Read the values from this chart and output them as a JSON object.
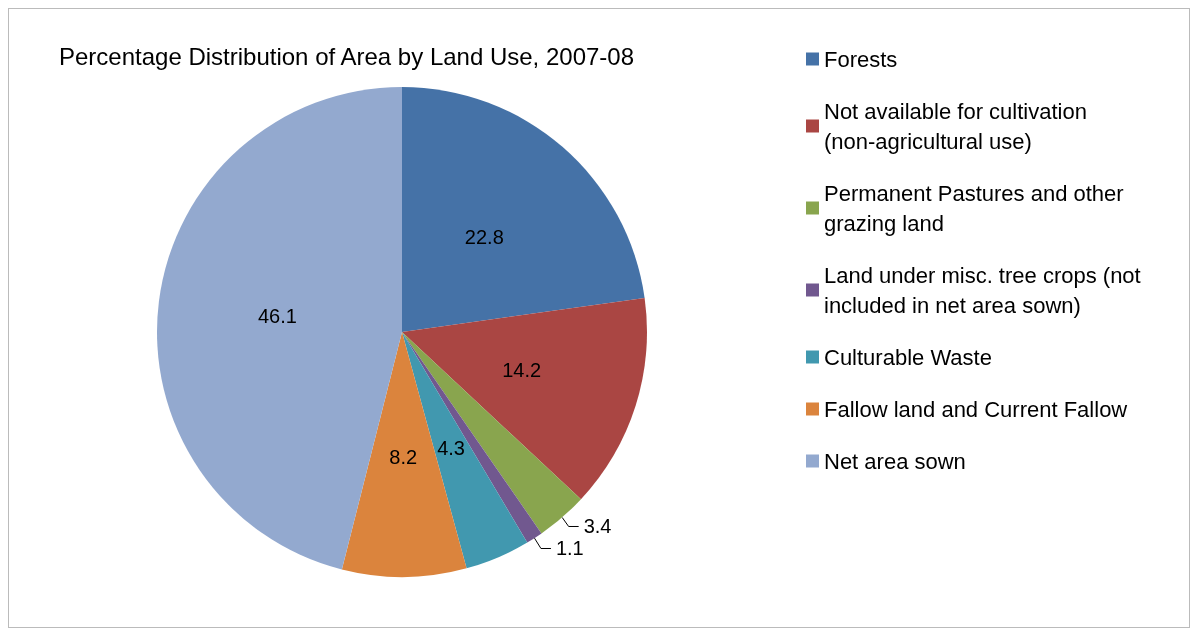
{
  "chart_data": {
    "type": "pie",
    "title": "Percentage Distribution of Area by Land Use, 2007-08",
    "categories": [
      "Forests",
      "Not available for cultivation (non-agricultural use)",
      "Permanent Pastures and other grazing land",
      "Land under misc. tree crops (not included in net area sown)",
      "Culturable Waste",
      "Fallow land and Current Fallow",
      "Net area sown"
    ],
    "values": [
      22.8,
      14.2,
      3.4,
      1.1,
      4.3,
      8.2,
      46.1
    ],
    "colors": [
      "#4572a7",
      "#aa4643",
      "#89a54e",
      "#71588f",
      "#4198af",
      "#db843d",
      "#93a9cf"
    ],
    "data_labels": true,
    "legend": "right"
  }
}
